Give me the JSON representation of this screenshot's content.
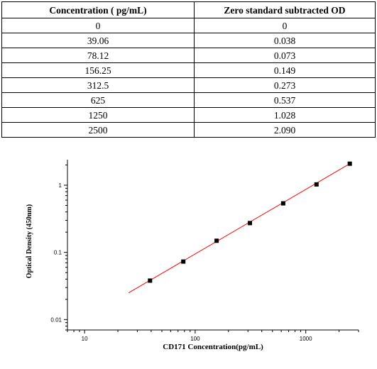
{
  "table": {
    "headers": [
      "Concentration ( pg/mL)",
      "Zero standard subtracted OD"
    ],
    "rows": [
      [
        "0",
        "0"
      ],
      [
        "39.06",
        "0.038"
      ],
      [
        "78.12",
        "0.073"
      ],
      [
        "156.25",
        "0.149"
      ],
      [
        "312.5",
        "0.273"
      ],
      [
        "625",
        "0.537"
      ],
      [
        "1250",
        "1.028"
      ],
      [
        "2500",
        "2.090"
      ]
    ]
  },
  "chart_data": {
    "type": "scatter",
    "xlabel": "CD171  Concentration(pg/mL)",
    "ylabel": "Optical Density (450nm)",
    "x_scale": "log",
    "y_scale": "log",
    "xlim": [
      7,
      3000
    ],
    "ylim": [
      0.007,
      2.4
    ],
    "x_ticks": [
      10,
      100,
      1000
    ],
    "x_tick_labels": [
      "10",
      "100",
      "1000"
    ],
    "y_ticks": [
      0.01,
      0.1,
      1
    ],
    "y_tick_labels": [
      "0.01",
      "0.1",
      "1"
    ],
    "grid": false,
    "legend": "none",
    "series": [
      {
        "x": [
          39.06,
          78.12,
          156.25,
          312.5,
          625,
          1250,
          2500
        ],
        "y": [
          0.038,
          0.073,
          0.149,
          0.273,
          0.537,
          1.028,
          2.09
        ],
        "marker": "square",
        "color": "#000000"
      }
    ],
    "fit_line": {
      "x": [
        25,
        2500
      ],
      "y": [
        0.025,
        2.09
      ],
      "color": "#ff0000"
    }
  }
}
